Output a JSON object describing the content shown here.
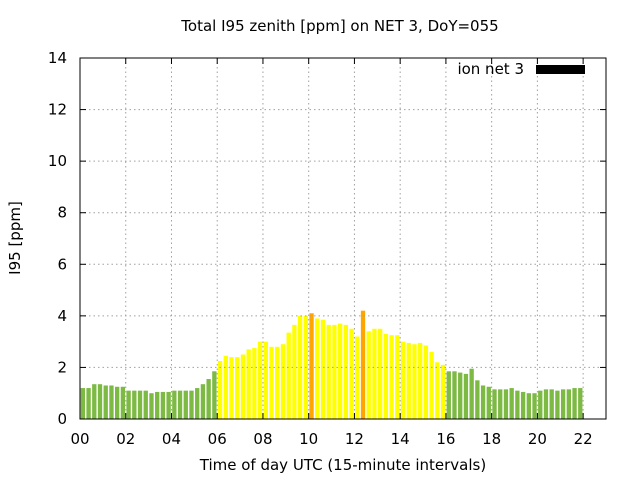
{
  "chart_data": {
    "type": "bar",
    "title": "Total I95 zenith [ppm] on NET 3, DoY=055",
    "xlabel": "Time of day UTC (15-minute intervals)",
    "ylabel": "I95 [ppm]",
    "xlim": [
      0,
      23
    ],
    "ylim": [
      0,
      14
    ],
    "x_ticks": [
      "00",
      "02",
      "04",
      "06",
      "08",
      "10",
      "12",
      "14",
      "16",
      "18",
      "20",
      "22"
    ],
    "y_ticks": [
      "0",
      "2",
      "4",
      "6",
      "8",
      "10",
      "12",
      "14"
    ],
    "grid": true,
    "legend": {
      "position": "top-right",
      "entries": [
        {
          "label": "ion net 3",
          "color": "#000000"
        }
      ]
    },
    "bar_interval_hours": 0.25,
    "colors": {
      "low": "#7cba44",
      "medium": "#ffff00",
      "high": "#ffa500"
    },
    "values": [
      1.2,
      1.2,
      1.35,
      1.35,
      1.3,
      1.3,
      1.25,
      1.25,
      1.1,
      1.1,
      1.1,
      1.1,
      1.0,
      1.05,
      1.05,
      1.05,
      1.1,
      1.1,
      1.1,
      1.1,
      1.2,
      1.35,
      1.55,
      1.85,
      2.25,
      2.45,
      2.4,
      2.4,
      2.5,
      2.7,
      2.75,
      3.0,
      3.0,
      2.8,
      2.8,
      2.9,
      3.35,
      3.65,
      4.0,
      4.0,
      4.1,
      3.9,
      3.85,
      3.65,
      3.65,
      3.7,
      3.65,
      3.5,
      3.2,
      4.2,
      3.4,
      3.5,
      3.5,
      3.3,
      3.25,
      3.25,
      3.0,
      2.95,
      2.9,
      2.95,
      2.85,
      2.6,
      2.2,
      2.1,
      1.85,
      1.85,
      1.8,
      1.75,
      1.95,
      1.5,
      1.3,
      1.25,
      1.15,
      1.15,
      1.15,
      1.2,
      1.1,
      1.05,
      1.0,
      1.0,
      1.1,
      1.15,
      1.15,
      1.1,
      1.15,
      1.15,
      1.2,
      1.2
    ],
    "levels": [
      "low",
      "low",
      "low",
      "low",
      "low",
      "low",
      "low",
      "low",
      "low",
      "low",
      "low",
      "low",
      "low",
      "low",
      "low",
      "low",
      "low",
      "low",
      "low",
      "low",
      "low",
      "low",
      "low",
      "low",
      "medium",
      "medium",
      "medium",
      "medium",
      "medium",
      "medium",
      "medium",
      "medium",
      "medium",
      "medium",
      "medium",
      "medium",
      "medium",
      "medium",
      "medium",
      "medium",
      "high",
      "medium",
      "medium",
      "medium",
      "medium",
      "medium",
      "medium",
      "medium",
      "medium",
      "high",
      "medium",
      "medium",
      "medium",
      "medium",
      "medium",
      "medium",
      "medium",
      "medium",
      "medium",
      "medium",
      "medium",
      "medium",
      "medium",
      "medium",
      "low",
      "low",
      "low",
      "low",
      "low",
      "low",
      "low",
      "low",
      "low",
      "low",
      "low",
      "low",
      "low",
      "low",
      "low",
      "low",
      "low",
      "low",
      "low",
      "low",
      "low",
      "low",
      "low",
      "low"
    ]
  }
}
